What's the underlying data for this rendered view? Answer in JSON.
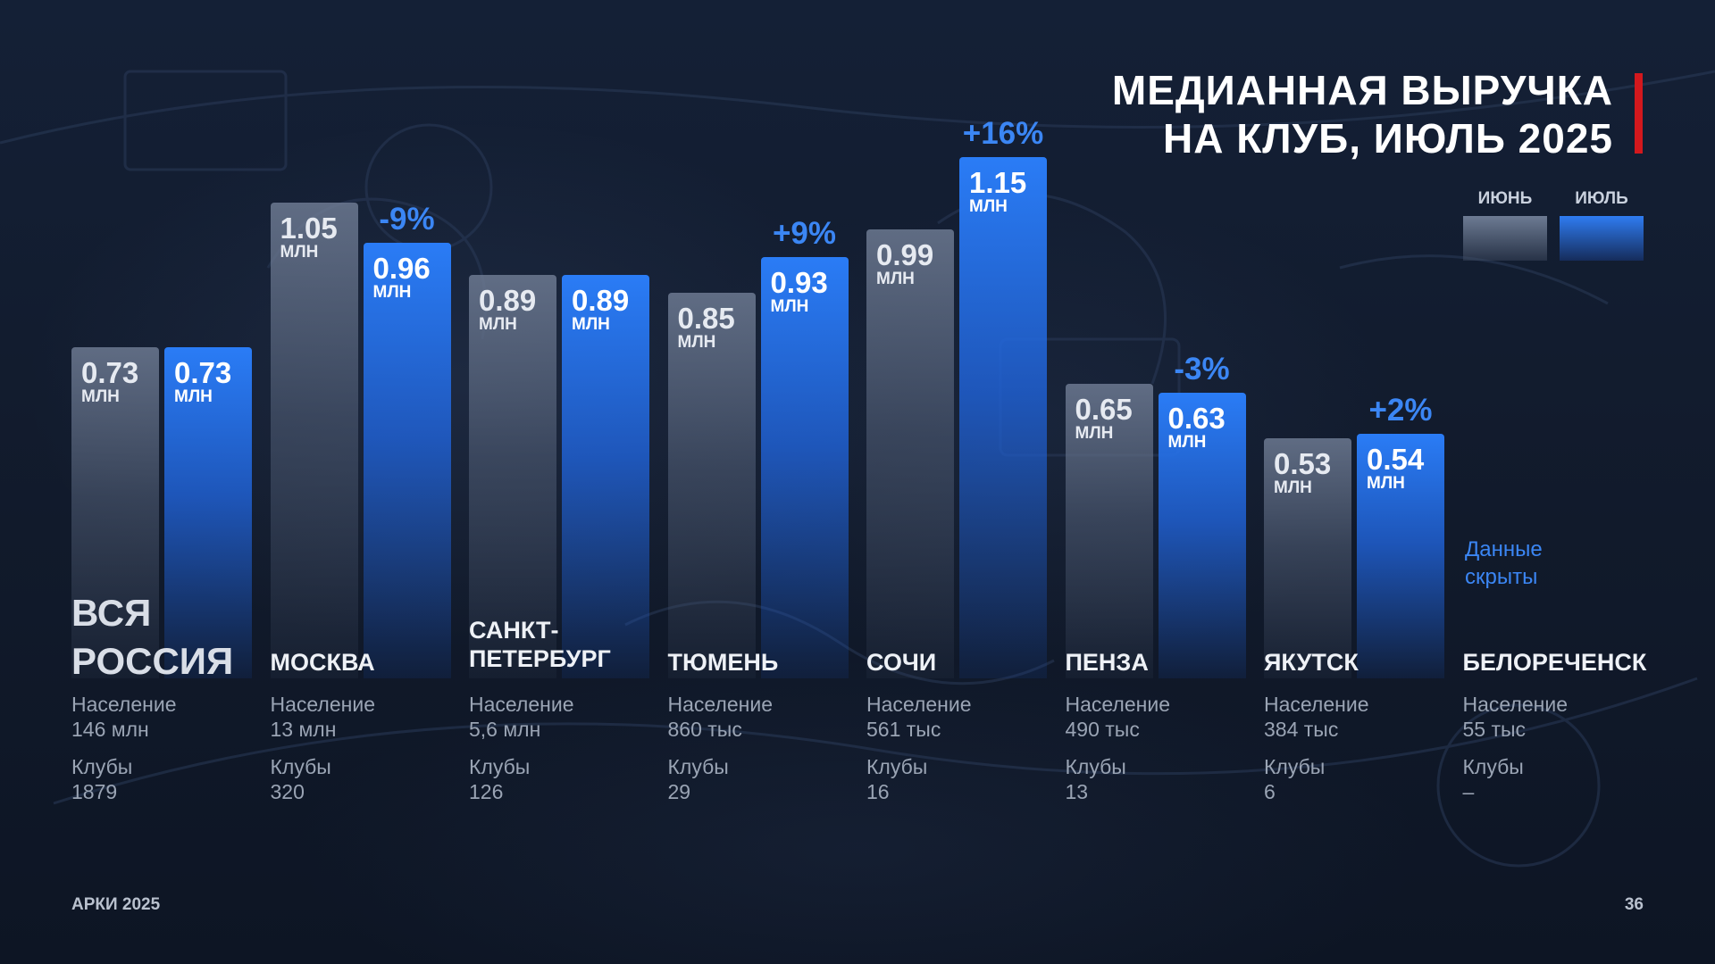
{
  "title_line1": "МЕДИАННАЯ ВЫРУЧКА",
  "title_line2": "НА КЛУБ, ИЮЛЬ 2025",
  "legend": {
    "june": "ИЮНЬ",
    "july": "ИЮЛЬ"
  },
  "colors": {
    "june": "#707d95",
    "july": "#2a7cf6",
    "accent": "#d3181d",
    "change": "#3b86f4"
  },
  "unit": "МЛН",
  "population_label": "Население",
  "clubs_label": "Клубы",
  "hidden_note_line1": "Данные",
  "hidden_note_line2": "скрыты",
  "chart_data": {
    "type": "bar",
    "categories": [
      "ВСЯ РОССИЯ",
      "МОСКВА",
      "САНКТ-ПЕТЕРБУРГ",
      "ТЮМЕНЬ",
      "СОЧИ",
      "ПЕНЗА",
      "ЯКУТСК",
      "БЕЛОРЕЧЕНСК"
    ],
    "series": [
      {
        "name": "ИЮНЬ",
        "values": [
          0.73,
          1.05,
          0.89,
          0.85,
          0.99,
          0.65,
          0.53,
          null
        ],
        "labels": [
          "0.73",
          "1.05",
          "0.89",
          "0.85",
          "0.99",
          "0.65",
          "0.53",
          ""
        ]
      },
      {
        "name": "ИЮЛЬ",
        "values": [
          0.73,
          0.96,
          0.89,
          0.93,
          1.15,
          0.63,
          0.54,
          null
        ],
        "labels": [
          "0.73",
          "0.96",
          "0.89",
          "0.93",
          "1.15",
          "0.63",
          "0.54",
          ""
        ]
      }
    ],
    "changes": [
      "",
      "-9%",
      "",
      "+9%",
      "+16%",
      "-3%",
      "+2%",
      ""
    ],
    "ylabel": "",
    "ylim": [
      0,
      1.2
    ],
    "legend": "top-right"
  },
  "cities": [
    {
      "name_line1": "ВСЯ",
      "name_line2": "РОССИЯ",
      "population": "146 млн",
      "clubs": "1879"
    },
    {
      "name_line1": "МОСКВА",
      "name_line2": "",
      "population": "13 млн",
      "clubs": "320"
    },
    {
      "name_line1": "САНКТ-",
      "name_line2": "ПЕТЕРБУРГ",
      "population": "5,6 млн",
      "clubs": "126"
    },
    {
      "name_line1": "ТЮМЕНЬ",
      "name_line2": "",
      "population": "860 тыс",
      "clubs": "29"
    },
    {
      "name_line1": "СОЧИ",
      "name_line2": "",
      "population": "561 тыс",
      "clubs": "16"
    },
    {
      "name_line1": "ПЕНЗА",
      "name_line2": "",
      "population": "490 тыс",
      "clubs": "13"
    },
    {
      "name_line1": "ЯКУТСК",
      "name_line2": "",
      "population": "384 тыс",
      "clubs": "6"
    },
    {
      "name_line1": "БЕЛОРЕЧЕНСК",
      "name_line2": "",
      "population": "55 тыс",
      "clubs": "–"
    }
  ],
  "footer_left": "АРКИ 2025",
  "page_number": "36"
}
